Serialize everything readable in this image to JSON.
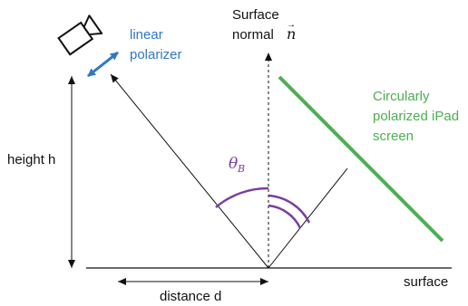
{
  "colors": {
    "ink": "#111111",
    "polarizer_blue": "#2f78c4",
    "screen_green": "#4caf50",
    "angle_purple": "#7b3fa0"
  },
  "labels": {
    "surface_normal_line1": "Surface",
    "surface_normal_line2": "normal",
    "normal_vector": "n",
    "linear_polarizer_line1": "linear",
    "linear_polarizer_line2": "polarizer",
    "ipad_line1": "Circularly",
    "ipad_line2": "polarized iPad",
    "ipad_line3": "screen",
    "height": "height h",
    "theta": "θ",
    "theta_subscript": "B",
    "distance": "distance d",
    "surface": "surface"
  },
  "icons": {
    "camera": "camera-icon",
    "polarizer_arrow": "double-arrow-icon"
  }
}
